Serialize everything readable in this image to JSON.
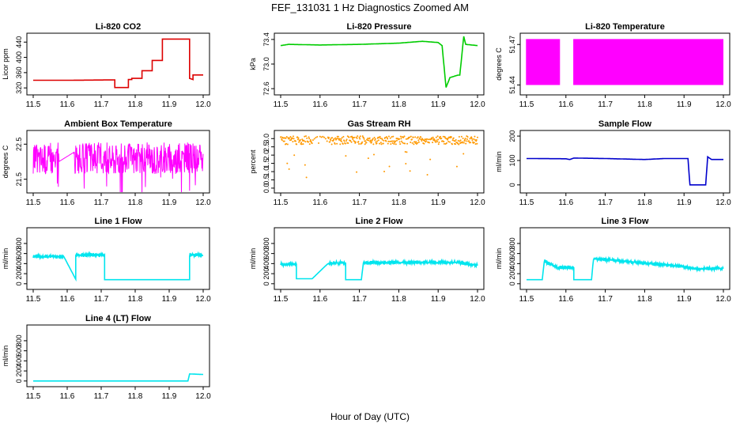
{
  "title": "FEF_131031  1 Hz Diagnostics Zoomed AM",
  "xlabel": "Hour of Day (UTC)",
  "chart_data": [
    {
      "type": "line",
      "title": "Li-820 CO2",
      "ylabel": "Licor ppm",
      "color": "#dd0000",
      "xlim": [
        11.5,
        12.0
      ],
      "ylim": [
        310,
        455
      ],
      "yticks": [
        320,
        360,
        400,
        440
      ],
      "x": [
        11.5,
        11.6,
        11.74,
        11.74,
        11.78,
        11.78,
        11.79,
        11.79,
        11.82,
        11.82,
        11.85,
        11.85,
        11.88,
        11.88,
        11.88,
        11.96,
        11.96,
        11.97,
        11.97,
        12.0
      ],
      "y": [
        340,
        340,
        341,
        321,
        321,
        342,
        342,
        345,
        345,
        365,
        365,
        392,
        392,
        420,
        448,
        448,
        345,
        342,
        354,
        354
      ],
      "series": [
        {
          "values": [
            340,
            340,
            341,
            321,
            321,
            342,
            342,
            345,
            345,
            365,
            365,
            392,
            392,
            420,
            448,
            448,
            345,
            342,
            354,
            354
          ]
        }
      ]
    },
    {
      "type": "line",
      "title": "Li-820 Pressure",
      "ylabel": "kPa",
      "color": "#00cc00",
      "xlim": [
        11.5,
        12.0
      ],
      "ylim": [
        72.55,
        73.45
      ],
      "yticks": [
        72.6,
        73.0,
        73.4
      ],
      "x": [
        11.5,
        11.52,
        11.6,
        11.7,
        11.8,
        11.86,
        11.9,
        11.91,
        11.92,
        11.93,
        11.95,
        11.955,
        11.965,
        11.97,
        12.0
      ],
      "y": [
        73.3,
        73.32,
        73.31,
        73.32,
        73.34,
        73.37,
        73.35,
        73.3,
        72.62,
        72.78,
        72.82,
        72.82,
        73.45,
        73.32,
        73.3
      ],
      "series": [
        {
          "values": [
            73.3,
            73.32,
            73.31,
            73.32,
            73.34,
            73.37,
            73.35,
            73.3,
            72.62,
            72.78,
            72.82,
            72.82,
            73.45,
            73.32,
            73.3
          ]
        }
      ]
    },
    {
      "type": "line",
      "title": "Li-820 Temperature",
      "ylabel": "degrees C",
      "color": "#ff00ff",
      "xlim": [
        11.5,
        12.0
      ],
      "ylim": [
        51.435,
        51.476
      ],
      "yticks": [
        51.44,
        51.47
      ],
      "note_pattern": "rapid oscillation between 51.44 and 51.474, flat 51.44 from 11.58 to 11.62",
      "series": [
        {
          "values": [
            51.44,
            51.474
          ]
        }
      ]
    },
    {
      "type": "line",
      "title": "Ambient Box Temperature",
      "ylabel": "degrees C",
      "color": "#ff00ff",
      "xlim": [
        11.5,
        12.0
      ],
      "ylim": [
        21.2,
        22.8
      ],
      "yticks": [
        21.5,
        22.5
      ],
      "series": [
        {
          "values": [
            22.1,
            22.3,
            21.9,
            22.0,
            22.2
          ]
        }
      ]
    },
    {
      "type": "scatter",
      "title": "Gas Stream RH",
      "ylabel": "percent",
      "color": "#ff9900",
      "xlim": [
        11.5,
        12.0
      ],
      "ylim": [
        -0.1,
        3.3
      ],
      "yticks": [
        0.0,
        0.5,
        1.0,
        1.5,
        2.0,
        2.5,
        3.0
      ],
      "series": [
        {
          "values": [
            2.9,
            3.0,
            2.8,
            2.9,
            3.0
          ]
        }
      ]
    },
    {
      "type": "line",
      "title": "Sample Flow",
      "ylabel": "ml/min",
      "color": "#0000cc",
      "xlim": [
        11.5,
        12.0
      ],
      "ylim": [
        -20,
        210
      ],
      "yticks": [
        0,
        100,
        200
      ],
      "x": [
        11.5,
        11.51,
        11.6,
        11.61,
        11.62,
        11.7,
        11.8,
        11.85,
        11.91,
        11.915,
        11.955,
        11.96,
        11.97,
        12.0
      ],
      "y": [
        108,
        108,
        107,
        104,
        110,
        108,
        104,
        108,
        108,
        0,
        0,
        115,
        104,
        104
      ],
      "series": [
        {
          "values": [
            108,
            108,
            107,
            104,
            110,
            108,
            104,
            108,
            108,
            0,
            0,
            115,
            104,
            104
          ]
        }
      ]
    },
    {
      "type": "line",
      "title": "Line 1 Flow",
      "ylabel": "ml/min",
      "color": "#00e5ee",
      "xlim": [
        11.5,
        12.0
      ],
      "ylim": [
        -50,
        1050
      ],
      "yticks": [
        0,
        200,
        400,
        600,
        800
      ],
      "x": [
        11.5,
        11.59,
        11.625,
        11.625,
        11.71,
        11.71,
        11.96,
        11.96,
        12.0
      ],
      "y": [
        540,
        540,
        90,
        570,
        570,
        80,
        80,
        580,
        560
      ],
      "series": [
        {
          "values": [
            540,
            540,
            90,
            570,
            570,
            80,
            80,
            580,
            560
          ]
        }
      ]
    },
    {
      "type": "line",
      "title": "Line 2 Flow",
      "ylabel": "ml/min",
      "color": "#00e5ee",
      "xlim": [
        11.5,
        12.0
      ],
      "ylim": [
        -50,
        1050
      ],
      "yticks": [
        0,
        200,
        400,
        600,
        800
      ],
      "x": [
        11.5,
        11.54,
        11.54,
        11.58,
        11.62,
        11.66,
        11.665,
        11.665,
        11.705,
        11.71,
        11.96,
        12.0
      ],
      "y": [
        390,
        390,
        100,
        100,
        400,
        420,
        420,
        80,
        80,
        420,
        420,
        360
      ],
      "series": [
        {
          "values": [
            390,
            390,
            100,
            100,
            400,
            420,
            420,
            80,
            80,
            420,
            420,
            360
          ]
        }
      ]
    },
    {
      "type": "line",
      "title": "Line 3 Flow",
      "ylabel": "ml/min",
      "color": "#00e5ee",
      "xlim": [
        11.5,
        12.0
      ],
      "ylim": [
        -50,
        1050
      ],
      "yticks": [
        0,
        200,
        400,
        600,
        800
      ],
      "x": [
        11.5,
        11.54,
        11.545,
        11.58,
        11.58,
        11.62,
        11.62,
        11.665,
        11.67,
        11.9,
        11.92,
        12.0
      ],
      "y": [
        80,
        80,
        450,
        310,
        320,
        320,
        80,
        80,
        500,
        340,
        300,
        300
      ],
      "series": [
        {
          "values": [
            80,
            80,
            450,
            310,
            320,
            320,
            80,
            80,
            500,
            340,
            300,
            300
          ]
        }
      ]
    },
    {
      "type": "line",
      "title": "Line 4 (LT) Flow",
      "ylabel": "ml/min",
      "color": "#00e5ee",
      "xlim": [
        11.5,
        12.0
      ],
      "ylim": [
        -50,
        1050
      ],
      "yticks": [
        0,
        200,
        400,
        600,
        800
      ],
      "x": [
        11.5,
        11.955,
        11.96,
        12.0
      ],
      "y": [
        0,
        0,
        140,
        130
      ],
      "series": [
        {
          "values": [
            0,
            0,
            140,
            130
          ]
        }
      ]
    }
  ],
  "xticks": [
    "11.5",
    "11.6",
    "11.7",
    "11.8",
    "11.9",
    "12.0"
  ]
}
